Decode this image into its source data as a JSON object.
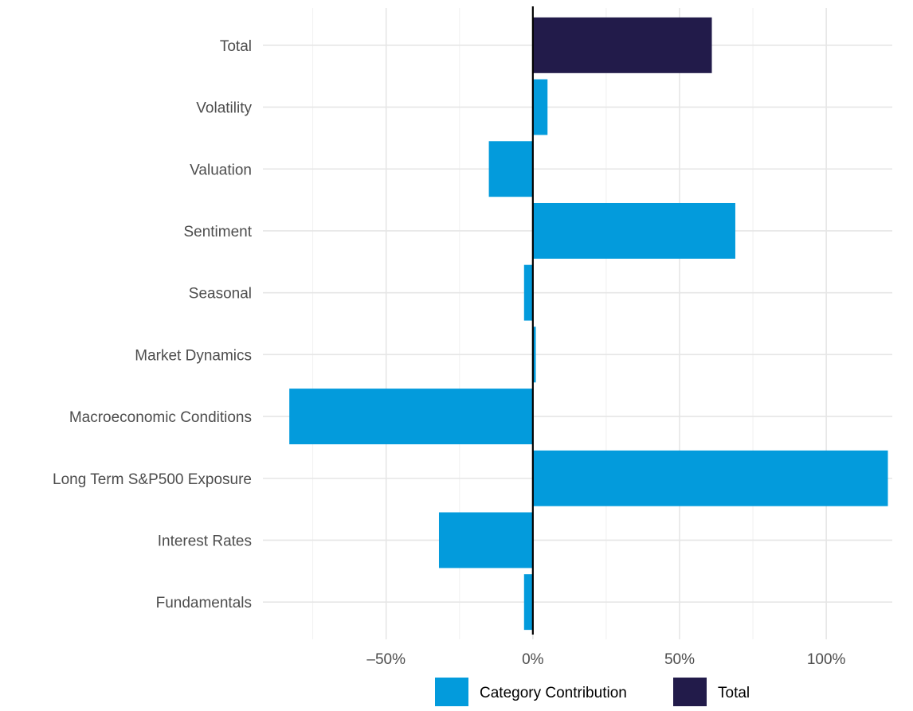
{
  "chart_data": {
    "type": "bar",
    "orientation": "horizontal",
    "categories": [
      "Total",
      "Volatility",
      "Valuation",
      "Sentiment",
      "Seasonal",
      "Market Dynamics",
      "Macroeconomic Conditions",
      "Long Term S&P500 Exposure",
      "Interest Rates",
      "Fundamentals"
    ],
    "series": [
      {
        "name": "Category Contribution",
        "color": "#039BDC",
        "values": [
          null,
          5,
          -15,
          69,
          -3,
          1,
          -83,
          121,
          -32,
          -3
        ]
      },
      {
        "name": "Total",
        "color": "#221B4A",
        "values": [
          61,
          null,
          null,
          null,
          null,
          null,
          null,
          null,
          null,
          null
        ]
      }
    ],
    "xticks": [
      -50,
      0,
      50,
      100
    ],
    "xtick_labels": [
      "–50%",
      "0%",
      "50%",
      "100%"
    ],
    "xlim": [
      -92,
      122.5
    ],
    "title": "",
    "xlabel": "",
    "ylabel": "",
    "grid": true,
    "legend_position": "bottom",
    "zero_line": true
  }
}
